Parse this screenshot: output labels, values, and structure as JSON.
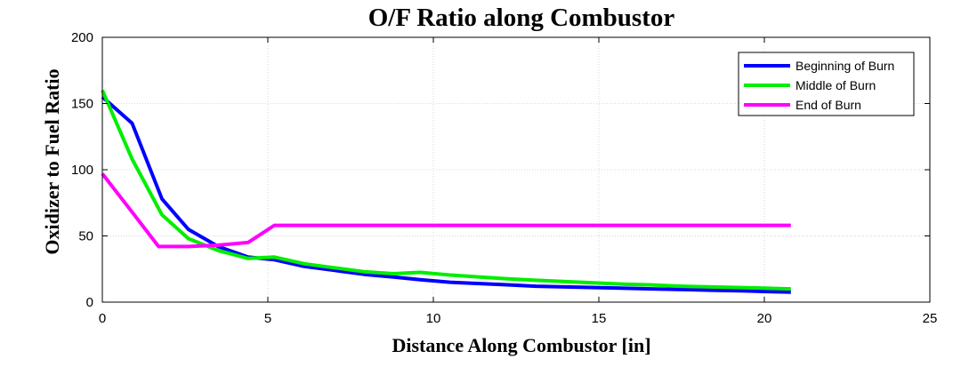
{
  "chart_data": {
    "type": "line",
    "title": "O/F Ratio along Combustor",
    "xlabel": "Distance Along Combustor [in]",
    "ylabel": "Oxidizer to Fuel Ratio",
    "xlim": [
      0,
      25
    ],
    "ylim": [
      0,
      200
    ],
    "xticks": [
      0,
      5,
      10,
      15,
      20,
      25
    ],
    "yticks": [
      0,
      50,
      100,
      150,
      200
    ],
    "grid": true,
    "legend_position": "top-right",
    "series": [
      {
        "name": "Beginning of Burn",
        "color": "#0000ff",
        "x": [
          0,
          0.9,
          1.8,
          2.6,
          3.5,
          4.4,
          5.2,
          6.1,
          7,
          7.9,
          8.8,
          9.6,
          10.5,
          11.4,
          12.3,
          13.1,
          14,
          14.9,
          15.8,
          16.6,
          17.5,
          18.4,
          19.3,
          20.1,
          20.8
        ],
        "y": [
          155,
          135,
          78,
          55,
          42,
          34,
          32,
          27,
          24,
          21,
          19,
          17,
          15,
          14,
          13,
          12,
          11.5,
          11,
          10.5,
          10,
          9.5,
          9,
          8.5,
          8,
          7.5
        ]
      },
      {
        "name": "Middle of Burn",
        "color": "#00ee00",
        "x": [
          0,
          0.9,
          1.8,
          2.6,
          3.5,
          4.4,
          5.2,
          6.1,
          7,
          7.9,
          8.8,
          9.6,
          10.5,
          11.4,
          12.3,
          13.1,
          14,
          14.9,
          15.8,
          16.6,
          17.5,
          18.4,
          19.3,
          20.1,
          20.8
        ],
        "y": [
          160,
          108,
          66,
          48,
          39,
          33,
          34,
          29,
          26,
          23,
          21.5,
          22.5,
          20.5,
          19,
          17.5,
          16.5,
          15.5,
          14.5,
          13.5,
          13,
          12,
          11.5,
          11,
          10.5,
          10
        ]
      },
      {
        "name": "End of Burn",
        "color": "#ff00ff",
        "x": [
          0,
          0.9,
          1.7,
          2.6,
          3.5,
          4.4,
          5.2,
          6,
          10,
          15,
          20.8
        ],
        "y": [
          97,
          68,
          42,
          42,
          43,
          45,
          58,
          58,
          58,
          58,
          58
        ]
      }
    ]
  }
}
